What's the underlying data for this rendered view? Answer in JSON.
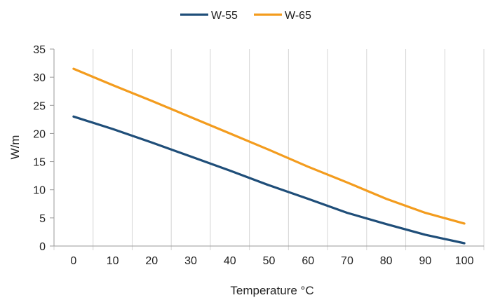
{
  "chart_data": {
    "type": "line",
    "title": "",
    "xlabel": "Temperature °C",
    "ylabel": "W/m",
    "x": [
      0,
      10,
      20,
      30,
      40,
      50,
      60,
      70,
      80,
      90,
      100
    ],
    "xlim": [
      -5,
      105
    ],
    "ylim": [
      0,
      35
    ],
    "x_ticks": [
      "0",
      "10",
      "20",
      "30",
      "40",
      "50",
      "60",
      "70",
      "80",
      "90",
      "100"
    ],
    "y_ticks": [
      "0",
      "5",
      "10",
      "15",
      "20",
      "25",
      "30",
      "35"
    ],
    "grid": "vertical",
    "legend_position": "top-center",
    "series": [
      {
        "name": "W-55",
        "color": "#1f4e79",
        "values": [
          23,
          20.8,
          18.4,
          15.9,
          13.4,
          10.8,
          8.4,
          5.9,
          3.9,
          2.0,
          0.5
        ]
      },
      {
        "name": "W-65",
        "color": "#f39c1e",
        "values": [
          31.5,
          28.6,
          25.8,
          22.9,
          20.0,
          17.1,
          14.1,
          11.3,
          8.4,
          5.9,
          4.0
        ]
      }
    ]
  }
}
